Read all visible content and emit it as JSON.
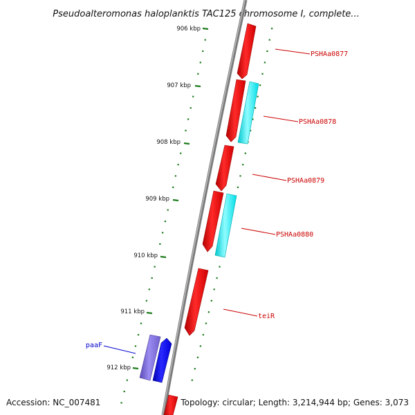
{
  "title": "Pseudoalteromonas haloplanktis TAC125 chromosome I, complete...",
  "footer": {
    "accession": "Accession: NC_007481",
    "info": "Topology: circular; Length: 3,214,944 bp; Genes: 3,073"
  },
  "colors": {
    "background": "#ffffff",
    "backbone": "#808080",
    "tick": "#1a7a1a",
    "red_gene": "#ff0000",
    "cyan_gene": "#00ffff",
    "blue_gene": "#0000ff",
    "purple_gene": "#6f5fcf",
    "red_label": "#cc0000",
    "blue_label": "#0000cc"
  },
  "kbp_ticks": [
    {
      "label": "906 kbp"
    },
    {
      "label": "907 kbp"
    },
    {
      "label": "908 kbp"
    },
    {
      "label": "909 kbp"
    },
    {
      "label": "910 kbp"
    },
    {
      "label": "911 kbp"
    },
    {
      "label": "912 kbp"
    }
  ],
  "gene_labels": [
    {
      "text": "PSHAa0877",
      "color": "red"
    },
    {
      "text": "PSHAa0878",
      "color": "red"
    },
    {
      "text": "PSHAa0879",
      "color": "red"
    },
    {
      "text": "PSHAa0880",
      "color": "red"
    },
    {
      "text": "teiR",
      "color": "red"
    },
    {
      "text": "paaF",
      "color": "blue"
    }
  ]
}
